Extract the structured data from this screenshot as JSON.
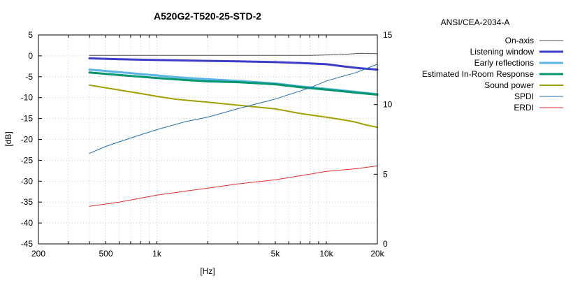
{
  "chart_data": {
    "type": "line",
    "title": "A520G2-T520-25-STD-2",
    "legend_title": "ANSI/CEA-2034-A",
    "xlabel": "[Hz]",
    "ylabel": "[dB]",
    "x_scale": "log",
    "xlim": [
      200,
      20000
    ],
    "ylim": [
      -45,
      5
    ],
    "y2lim": [
      0,
      15
    ],
    "grid": true,
    "legend_placement": "right",
    "x_ticks": [
      200,
      500,
      1000,
      5000,
      10000,
      20000
    ],
    "x_tick_labels": [
      "200",
      "500",
      "1k",
      "5k",
      "10k",
      "20k"
    ],
    "y_ticks": [
      5,
      0,
      -5,
      -10,
      -15,
      -20,
      -25,
      -30,
      -35,
      -40,
      -45
    ],
    "y_tick_labels": [
      "5",
      "0",
      "-5",
      "-10",
      "-15",
      "-20",
      "-25",
      "-30",
      "-35",
      "-40",
      "-45"
    ],
    "y2_ticks": [
      15,
      10,
      5,
      0
    ],
    "y2_tick_labels": [
      "15",
      "10",
      "5",
      "0"
    ],
    "series": [
      {
        "name": "On-axis",
        "color": "#505050",
        "width": 1,
        "axis": "y",
        "x": [
          400,
          1000,
          2000,
          4000,
          8000,
          12000,
          16000,
          20000
        ],
        "y": [
          0.1,
          0.1,
          0.1,
          0.1,
          0.1,
          0.3,
          0.6,
          0.5
        ]
      },
      {
        "name": "Listening window",
        "color": "#3c3cc8",
        "width": 3,
        "axis": "y",
        "x": [
          400,
          600,
          1000,
          2000,
          3000,
          5000,
          7000,
          10000,
          13000,
          16000,
          20000
        ],
        "y": [
          -0.6,
          -0.8,
          -1.0,
          -1.2,
          -1.3,
          -1.5,
          -1.7,
          -2.0,
          -2.6,
          -3.0,
          -3.3
        ]
      },
      {
        "name": "Early reflections",
        "color": "#5ab4e6",
        "width": 3,
        "axis": "y",
        "x": [
          400,
          600,
          1000,
          1500,
          2000,
          3000,
          5000,
          7000,
          10000,
          14000,
          20000
        ],
        "y": [
          -3.3,
          -3.9,
          -4.7,
          -5.3,
          -5.6,
          -6.0,
          -6.6,
          -7.3,
          -7.9,
          -8.5,
          -9.2
        ]
      },
      {
        "name": "Estimated In-Room Response",
        "color": "#00966e",
        "width": 3,
        "axis": "y",
        "x": [
          400,
          600,
          1000,
          1500,
          2000,
          3000,
          5000,
          7000,
          10000,
          14000,
          20000
        ],
        "y": [
          -4.0,
          -4.6,
          -5.3,
          -5.8,
          -6.1,
          -6.3,
          -6.8,
          -7.5,
          -8.1,
          -8.7,
          -9.3
        ]
      },
      {
        "name": "Sound power",
        "color": "#a0a000",
        "width": 2,
        "axis": "y",
        "x": [
          400,
          600,
          800,
          1000,
          1300,
          2000,
          3000,
          5000,
          7000,
          10000,
          13000,
          15000,
          17000,
          20000
        ],
        "y": [
          -7.0,
          -8.2,
          -9.0,
          -9.7,
          -10.4,
          -11.1,
          -11.8,
          -12.7,
          -13.8,
          -14.7,
          -15.4,
          -15.9,
          -16.5,
          -17.1
        ]
      },
      {
        "name": "SPDI",
        "color": "#2070b4",
        "width": 1,
        "axis": "y2",
        "x": [
          400,
          500,
          700,
          1000,
          1500,
          2000,
          3000,
          5000,
          8000,
          10000,
          15000,
          20000
        ],
        "y": [
          6.5,
          7.0,
          7.6,
          8.2,
          8.8,
          9.1,
          9.7,
          10.4,
          11.2,
          11.7,
          12.3,
          12.9
        ]
      },
      {
        "name": "ERDI",
        "color": "#e03030",
        "width": 1,
        "axis": "y2",
        "x": [
          400,
          600,
          1000,
          1500,
          2000,
          3000,
          5000,
          8000,
          10000,
          15000,
          20000
        ],
        "y": [
          2.7,
          3.0,
          3.5,
          3.8,
          4.0,
          4.3,
          4.6,
          5.0,
          5.2,
          5.4,
          5.6
        ]
      }
    ]
  }
}
